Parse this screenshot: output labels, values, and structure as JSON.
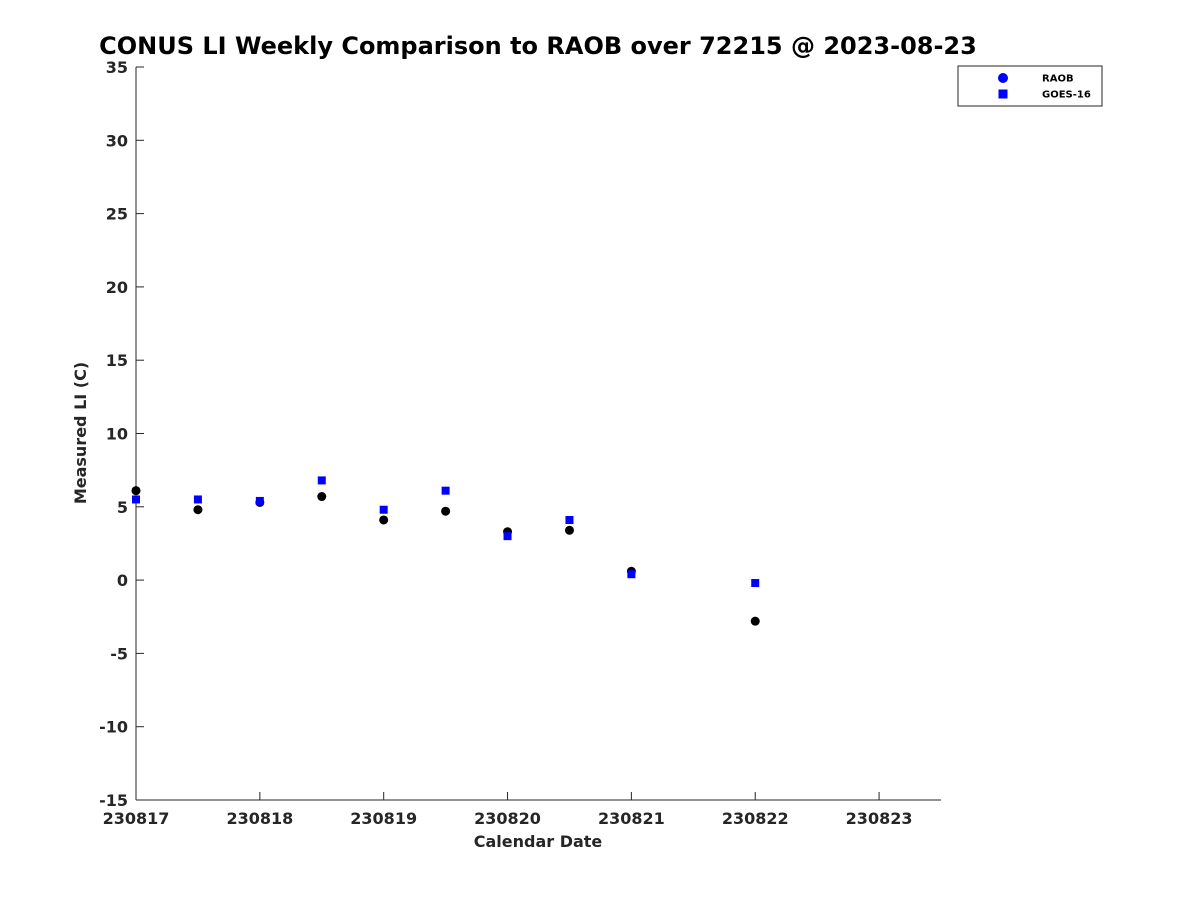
{
  "chart_data": {
    "type": "scatter",
    "title": "CONUS LI Weekly Comparison to RAOB over 72215 @ 2023-08-23",
    "xlabel": "Calendar Date",
    "ylabel": "Measured LI (C)",
    "xlim": [
      "2023-08-17",
      "2023-08-23 12:00"
    ],
    "ylim": [
      -15,
      35
    ],
    "x_ticks": [
      "230817",
      "230818",
      "230819",
      "230820",
      "230821",
      "230822",
      "230823"
    ],
    "y_ticks": [
      "35",
      "30",
      "25",
      "20",
      "15",
      "10",
      "5",
      "0",
      "-5",
      "-10",
      "-15"
    ],
    "grid": false,
    "legend_position": "top-right",
    "legend": [
      "RAOB",
      "GOES-16"
    ],
    "series": [
      {
        "name": "RAOB",
        "marker": "circle",
        "color": "#000000",
        "legend_color": "#0000ff",
        "x": [
          "2023-08-17 00:00",
          "2023-08-17 12:00",
          "2023-08-18 00:00",
          "2023-08-18 12:00",
          "2023-08-19 00:00",
          "2023-08-19 12:00",
          "2023-08-20 00:00",
          "2023-08-20 12:00",
          "2023-08-21 00:00",
          "2023-08-22 00:00"
        ],
        "y": [
          6.1,
          4.8,
          5.3,
          5.7,
          4.1,
          4.7,
          3.3,
          3.4,
          0.6,
          -2.8
        ]
      },
      {
        "name": "GOES-16",
        "marker": "square",
        "color": "#0000ff",
        "legend_color": "#0000ff",
        "x": [
          "2023-08-17 00:00",
          "2023-08-17 12:00",
          "2023-08-18 00:00",
          "2023-08-18 12:00",
          "2023-08-19 00:00",
          "2023-08-19 12:00",
          "2023-08-20 00:00",
          "2023-08-20 12:00",
          "2023-08-21 00:00",
          "2023-08-22 00:00"
        ],
        "y": [
          5.5,
          5.5,
          5.4,
          6.8,
          4.8,
          6.1,
          3.0,
          4.1,
          0.4,
          -0.2
        ]
      }
    ]
  }
}
